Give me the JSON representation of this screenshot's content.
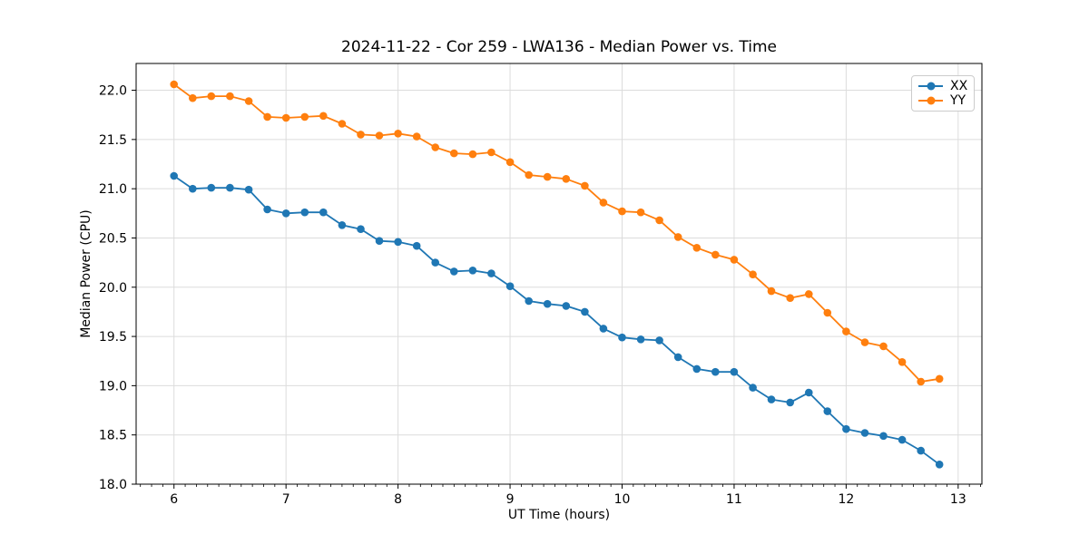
{
  "chart_data": {
    "type": "line",
    "title": "2024-11-22 - Cor 259 - LWA136 - Median Power vs. Time",
    "xlabel": "UT Time (hours)",
    "ylabel": "Median Power (CPU)",
    "xlim": [
      5.662,
      13.212
    ],
    "ylim": [
      18.0,
      22.272
    ],
    "xticks": [
      6,
      7,
      8,
      9,
      10,
      11,
      12,
      13
    ],
    "xtick_labels": [
      "6",
      "7",
      "8",
      "9",
      "10",
      "11",
      "12",
      "13"
    ],
    "yticks": [
      18.0,
      18.5,
      19.0,
      19.5,
      20.0,
      20.5,
      21.0,
      21.5,
      22.0
    ],
    "ytick_labels": [
      "18.0",
      "18.5",
      "19.0",
      "19.5",
      "20.0",
      "20.5",
      "21.0",
      "21.5",
      "22.0"
    ],
    "minor_xtick_step": 0.1,
    "grid": true,
    "grid_color": "#dcdcdc",
    "background": "#ffffff",
    "spine_color": "#000000",
    "legend_position": "upper right",
    "marker": "circle",
    "x": [
      6.0,
      6.167,
      6.333,
      6.5,
      6.667,
      6.833,
      7.0,
      7.167,
      7.333,
      7.5,
      7.667,
      7.833,
      8.0,
      8.167,
      8.333,
      8.5,
      8.667,
      8.833,
      9.0,
      9.167,
      9.333,
      9.5,
      9.667,
      9.833,
      10.0,
      10.167,
      10.333,
      10.5,
      10.667,
      10.833,
      11.0,
      11.167,
      11.333,
      11.5,
      11.667,
      11.833,
      12.0,
      12.167,
      12.333,
      12.5,
      12.667,
      12.833
    ],
    "series": [
      {
        "name": "XX",
        "color": "#1f77b4",
        "values": [
          21.13,
          21.0,
          21.01,
          21.01,
          20.99,
          20.79,
          20.75,
          20.76,
          20.76,
          20.63,
          20.59,
          20.47,
          20.46,
          20.42,
          20.25,
          20.16,
          20.17,
          20.14,
          20.01,
          19.86,
          19.83,
          19.81,
          19.75,
          19.58,
          19.49,
          19.47,
          19.46,
          19.29,
          19.17,
          19.14,
          19.14,
          18.98,
          18.86,
          18.83,
          18.93,
          18.74,
          18.56,
          18.52,
          18.49,
          18.45,
          18.34,
          18.2
        ]
      },
      {
        "name": "YY",
        "color": "#ff7f0e",
        "values": [
          22.06,
          21.92,
          21.94,
          21.94,
          21.89,
          21.73,
          21.72,
          21.73,
          21.74,
          21.66,
          21.55,
          21.54,
          21.56,
          21.53,
          21.42,
          21.36,
          21.35,
          21.37,
          21.27,
          21.14,
          21.12,
          21.1,
          21.03,
          20.86,
          20.77,
          20.76,
          20.68,
          20.51,
          20.4,
          20.33,
          20.28,
          20.13,
          19.96,
          19.89,
          19.93,
          19.74,
          19.55,
          19.44,
          19.4,
          19.24,
          19.04,
          19.07
        ]
      }
    ]
  }
}
